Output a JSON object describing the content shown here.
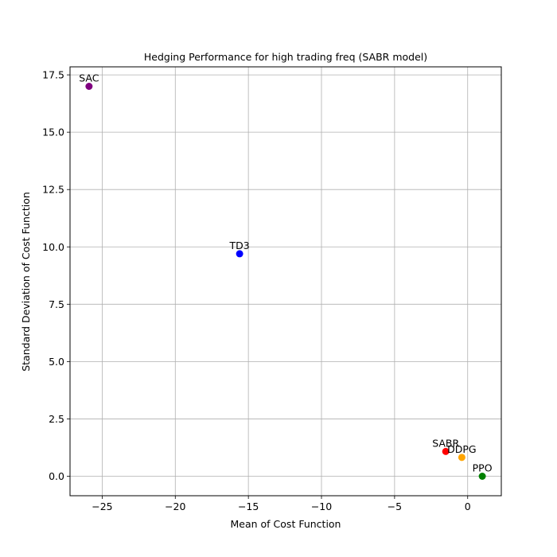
{
  "chart_data": {
    "type": "scatter",
    "title": "Hedging Performance for high trading freq (SABR model)",
    "xlabel": "Mean of Cost Function",
    "ylabel": "Standard Deviation of Cost Function",
    "xlim": [
      -27.2,
      2.3
    ],
    "ylim": [
      -0.85,
      17.85
    ],
    "xticks": [
      -25,
      -20,
      -15,
      -10,
      -5,
      0
    ],
    "xtick_labels": [
      "−25",
      "−20",
      "−15",
      "−10",
      "−5",
      "0"
    ],
    "yticks": [
      0.0,
      2.5,
      5.0,
      7.5,
      10.0,
      12.5,
      15.0,
      17.5
    ],
    "ytick_labels": [
      "0.0",
      "2.5",
      "5.0",
      "7.5",
      "10.0",
      "12.5",
      "15.0",
      "17.5"
    ],
    "grid": true,
    "points": [
      {
        "label": "SAC",
        "x": -25.9,
        "y": 17.0,
        "color": "#800080"
      },
      {
        "label": "TD3",
        "x": -15.6,
        "y": 9.7,
        "color": "#0000ff"
      },
      {
        "label": "SABR",
        "x": -1.5,
        "y": 1.08,
        "color": "#ff0000"
      },
      {
        "label": "DDPG",
        "x": -0.4,
        "y": 0.82,
        "color": "#ffa500"
      },
      {
        "label": "PPO",
        "x": 1.0,
        "y": 0.0,
        "color": "#008000"
      }
    ]
  }
}
